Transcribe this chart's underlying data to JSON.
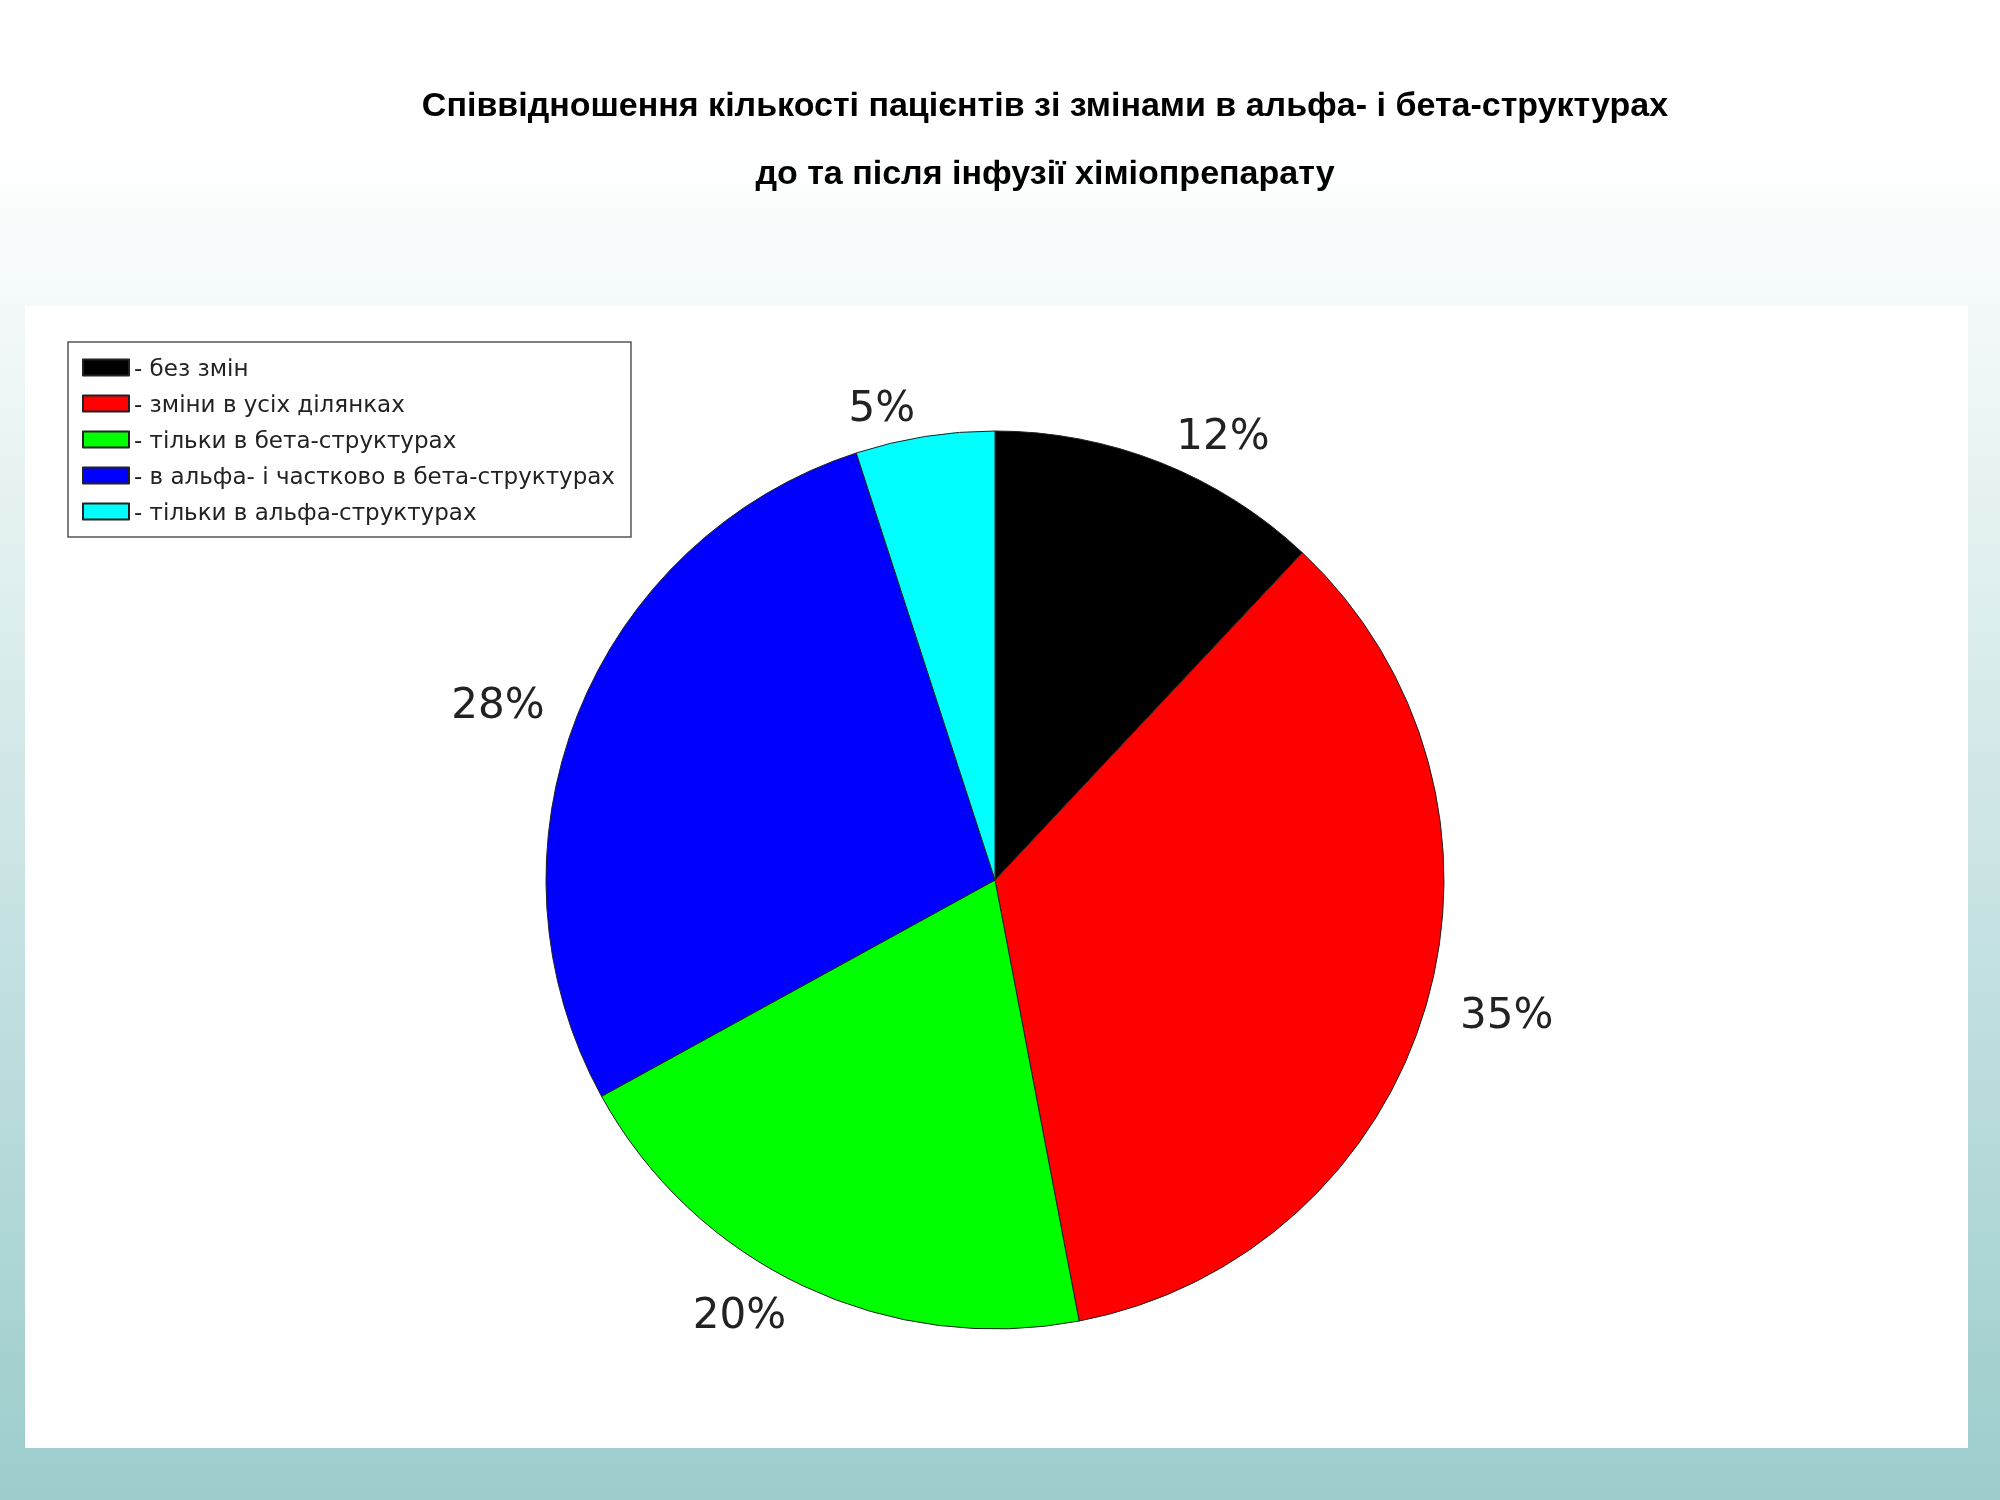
{
  "chart_data": {
    "type": "pie",
    "title": "Співвідношення кількості пацієнтів зі змінами в альфа- і бета-структурах\nдо та після інфузії хіміопрепарату",
    "categories": [
      "- без змін",
      "- зміни в усіх ділянках",
      "- тільки в бета-структурах",
      "- в альфа- і частково в бета-структурах",
      "- тільки в альфа-структурах"
    ],
    "values": [
      12,
      35,
      20,
      28,
      5
    ],
    "colors": [
      "#000000",
      "#ff0000",
      "#00ff00",
      "#0000ff",
      "#00ffff"
    ],
    "value_labels": [
      "12%",
      "35%",
      "20%",
      "28%",
      "5%"
    ],
    "legend": "top left"
  }
}
